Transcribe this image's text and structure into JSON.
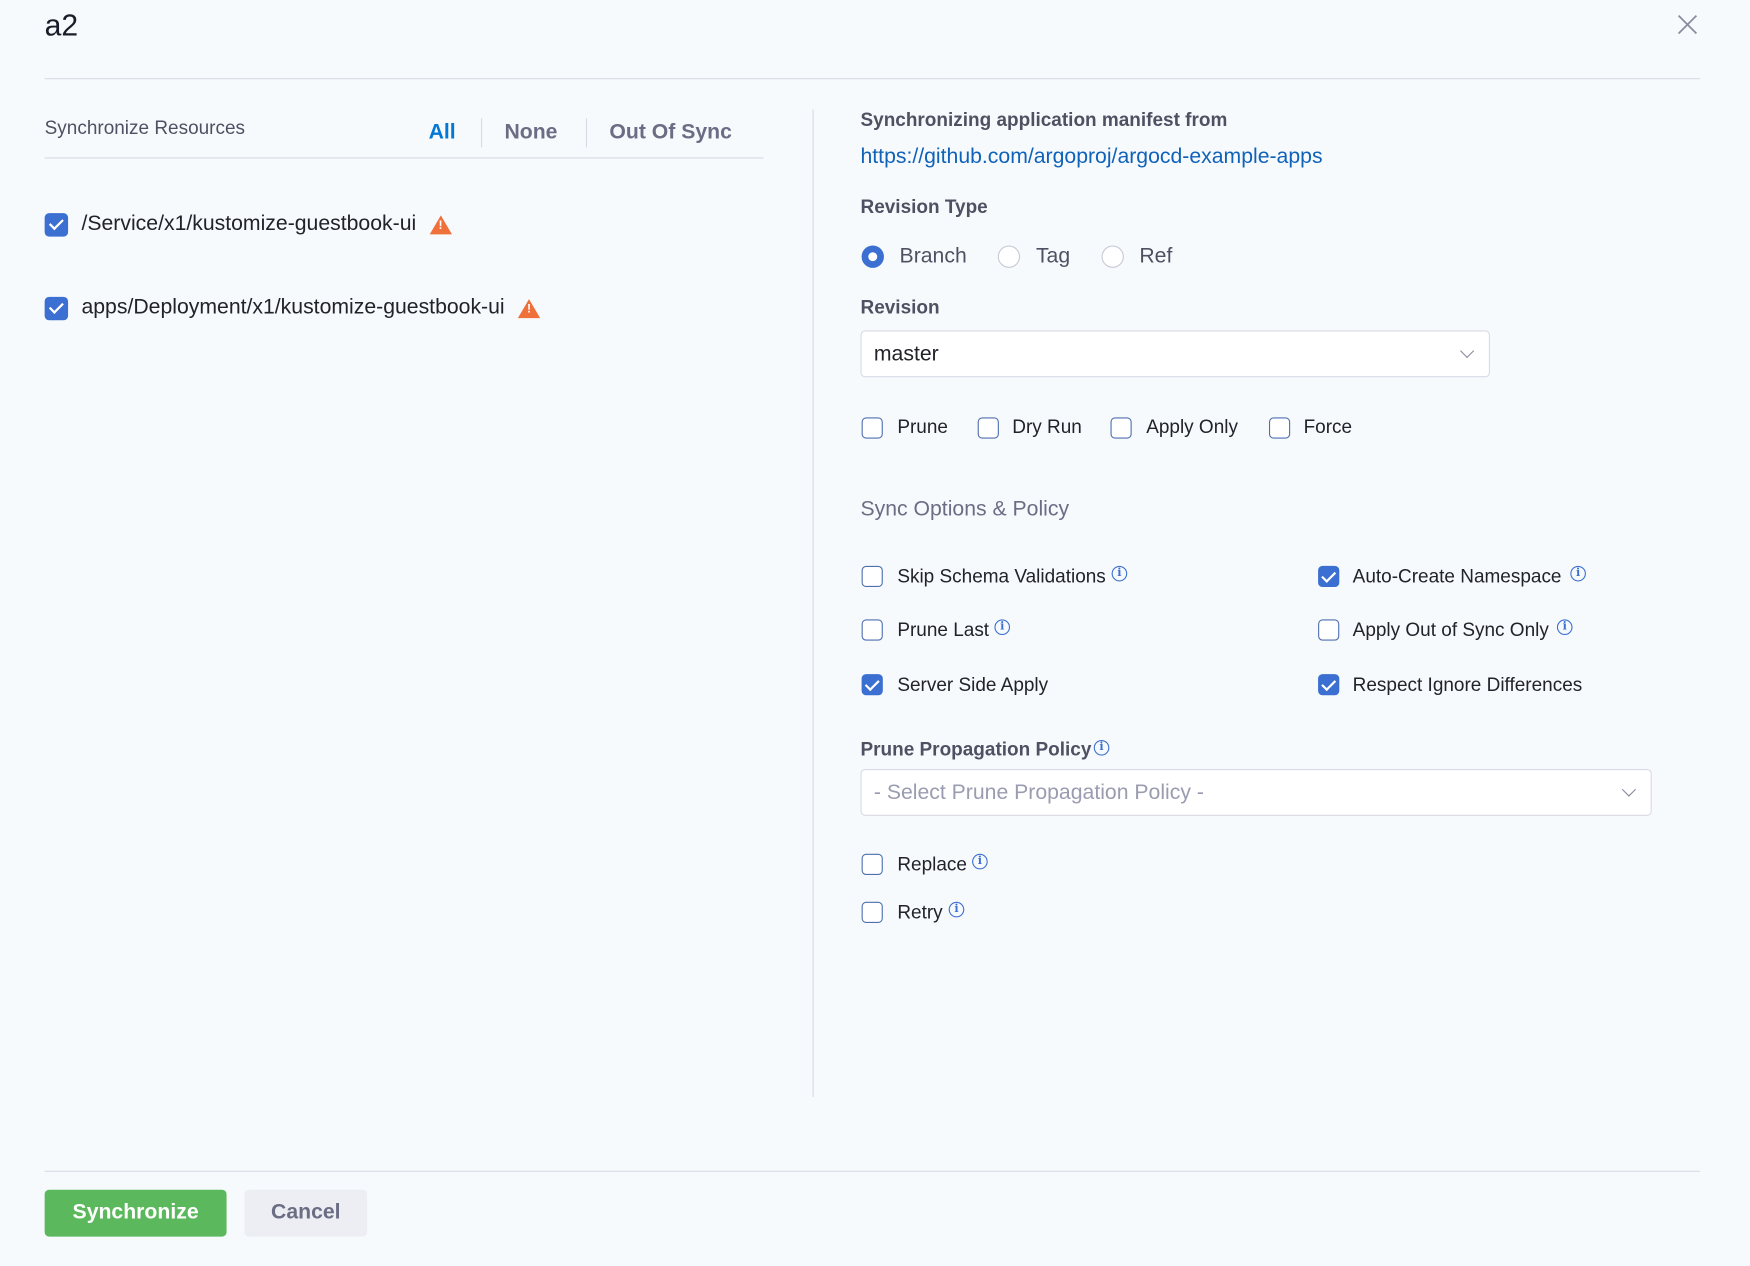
{
  "dialog": {
    "title": "a2"
  },
  "resources": {
    "heading": "Synchronize Resources",
    "filters": [
      "All",
      "None",
      "Out Of Sync"
    ],
    "active_filter": "All",
    "items": [
      {
        "label": "/Service/x1/kustomize-guestbook-ui",
        "checked": true,
        "icon": "warning-icon"
      },
      {
        "label": "apps/Deployment/x1/kustomize-guestbook-ui",
        "checked": true,
        "icon": "warning-icon"
      }
    ]
  },
  "manifest": {
    "heading": "Synchronizing application manifest from",
    "url": "https://github.com/argoproj/argocd-example-apps"
  },
  "revision_type": {
    "label": "Revision Type",
    "options": [
      "Branch",
      "Tag",
      "Ref"
    ],
    "selected": "Branch"
  },
  "revision": {
    "label": "Revision",
    "value": "master"
  },
  "sync_flags": [
    {
      "label": "Prune",
      "checked": false
    },
    {
      "label": "Dry Run",
      "checked": false
    },
    {
      "label": "Apply Only",
      "checked": false
    },
    {
      "label": "Force",
      "checked": false
    }
  ],
  "sync_options": {
    "heading": "Sync Options & Policy",
    "items": [
      {
        "label": "Skip Schema Validations",
        "checked": false,
        "info": true
      },
      {
        "label": "Auto-Create Namespace",
        "checked": true,
        "info": true
      },
      {
        "label": "Prune Last",
        "checked": false,
        "info": true
      },
      {
        "label": "Apply Out of Sync Only",
        "checked": false,
        "info": true
      },
      {
        "label": "Server Side Apply",
        "checked": true,
        "info": false
      },
      {
        "label": "Respect Ignore Differences",
        "checked": true,
        "info": false
      }
    ]
  },
  "prune_policy": {
    "label": "Prune Propagation Policy",
    "placeholder": "- Select Prune Propagation Policy -"
  },
  "extra_options": [
    {
      "label": "Replace",
      "checked": false
    },
    {
      "label": "Retry",
      "checked": false
    }
  ],
  "footer": {
    "synchronize_label": "Synchronize",
    "cancel_label": "Cancel"
  },
  "colors": {
    "accent": "#3b6fd1",
    "primary_button": "#5cb85c",
    "warning": "#f0703b",
    "link": "#0278d5"
  }
}
